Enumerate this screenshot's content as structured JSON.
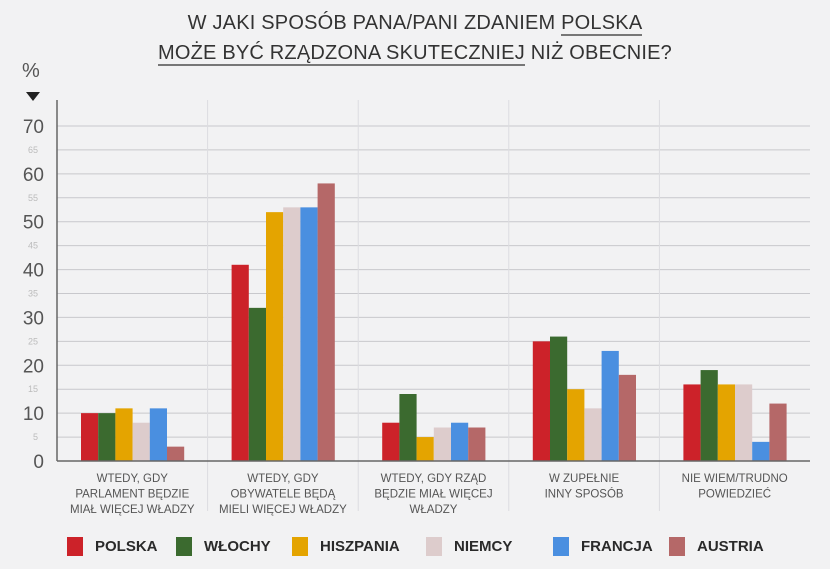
{
  "chart_data": {
    "type": "bar",
    "title_line1_prefix": "W JAKI SPOSÓB PANA/PANI ZDANIEM ",
    "title_line1_underlined": "POLSKA",
    "title_line2_underlined": "MOŻE BYĆ RZĄDZONA SKUTECZNIEJ",
    "title_line2_suffix": " NIŻ OBECNIE?",
    "ylabel": "%",
    "ylim": [
      0,
      70
    ],
    "major_ticks": [
      "0",
      "10",
      "20",
      "30",
      "40",
      "50",
      "60",
      "70"
    ],
    "minor_ticks": [
      "5",
      "15",
      "25",
      "35",
      "45",
      "55",
      "65"
    ],
    "grid": true,
    "legend_position": "bottom",
    "categories": [
      [
        "WTEDY, GDY",
        "PARLAMENT BĘDZIE",
        "MIAŁ WIĘCEJ WŁADZY"
      ],
      [
        "WTEDY, GDY",
        "OBYWATELE BĘDĄ",
        "MIELI WIĘCEJ WŁADZY"
      ],
      [
        "WTEDY, GDY RZĄD",
        "BĘDZIE MIAŁ WIĘCEJ",
        "WŁADZY"
      ],
      [
        "W ZUPEŁNIE",
        "INNY SPOSÓB"
      ],
      [
        "NIE WIEM/TRUDNO",
        "POWIEDZIEĆ"
      ]
    ],
    "series": [
      {
        "name": "POLSKA",
        "color": "#cc2229",
        "values": [
          10,
          41,
          8,
          25,
          16
        ]
      },
      {
        "name": "WŁOCHY",
        "color": "#3b6a2f",
        "values": [
          10,
          32,
          14,
          26,
          19
        ]
      },
      {
        "name": "HISZPANIA",
        "color": "#e4a400",
        "values": [
          11,
          52,
          5,
          15,
          16
        ]
      },
      {
        "name": "NIEMCY",
        "color": "#ddcccc",
        "values": [
          8,
          53,
          7,
          11,
          16
        ]
      },
      {
        "name": "FRANCJA",
        "color": "#4a8fe0",
        "values": [
          11,
          53,
          8,
          23,
          4
        ]
      },
      {
        "name": "AUSTRIA",
        "color": "#b56868",
        "values": [
          3,
          58,
          7,
          18,
          12
        ]
      }
    ]
  }
}
